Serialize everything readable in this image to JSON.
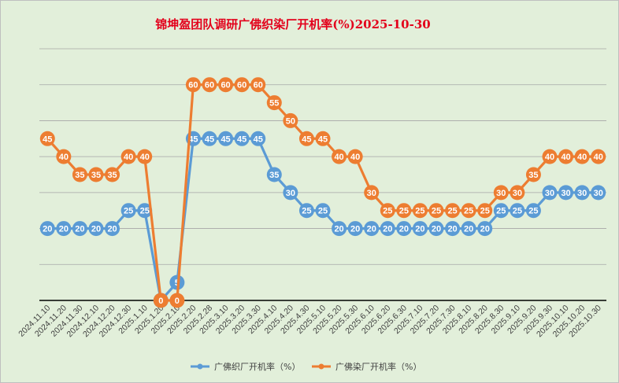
{
  "chart_data": {
    "type": "line",
    "title": "锦坤盈团队调研广佛织染厂开机率(%)2025-10-30",
    "categories": [
      "2024.11.10",
      "2024.11.20",
      "2024.11.30",
      "2024.12.10",
      "2024.12.20",
      "2024.12.30",
      "2025.1.10",
      "2025.1.20",
      "2025.2.10",
      "2025.2.20",
      "2025.2.28",
      "2025.3.10",
      "2025.3.20",
      "2025.3.30",
      "2025.4.10",
      "2025.4.20",
      "2025.4.30",
      "2025.5.10",
      "2025.5.20",
      "2025.5.30",
      "2025.6.10",
      "2025.6.20",
      "2025.6.30",
      "2025.7.10",
      "2025.7.20",
      "2025.7.30",
      "2025.8.10",
      "2025.8.20",
      "2025.8.30",
      "2025.9.10",
      "2025.9.20",
      "2025.9.30",
      "2025.10.10",
      "2025.10.20",
      "2025.10.30"
    ],
    "series": [
      {
        "name": "广佛织厂开机率（%）",
        "color": "#5b9bd5",
        "values": [
          20,
          20,
          20,
          20,
          20,
          25,
          25,
          0,
          5,
          45,
          45,
          45,
          45,
          45,
          35,
          30,
          25,
          25,
          20,
          20,
          20,
          20,
          20,
          20,
          20,
          20,
          20,
          20,
          25,
          25,
          25,
          30,
          30,
          30,
          30
        ]
      },
      {
        "name": "广佛染厂开机率（%）",
        "color": "#ed7d31",
        "values": [
          45,
          40,
          35,
          35,
          35,
          40,
          40,
          0,
          0,
          60,
          60,
          60,
          60,
          60,
          55,
          50,
          45,
          45,
          40,
          40,
          30,
          25,
          25,
          25,
          25,
          25,
          25,
          25,
          30,
          30,
          35,
          40,
          40,
          40,
          40
        ]
      }
    ],
    "ylim": [
      0,
      70
    ],
    "grid": true,
    "legend": "bottom",
    "background": "#e2efda"
  }
}
